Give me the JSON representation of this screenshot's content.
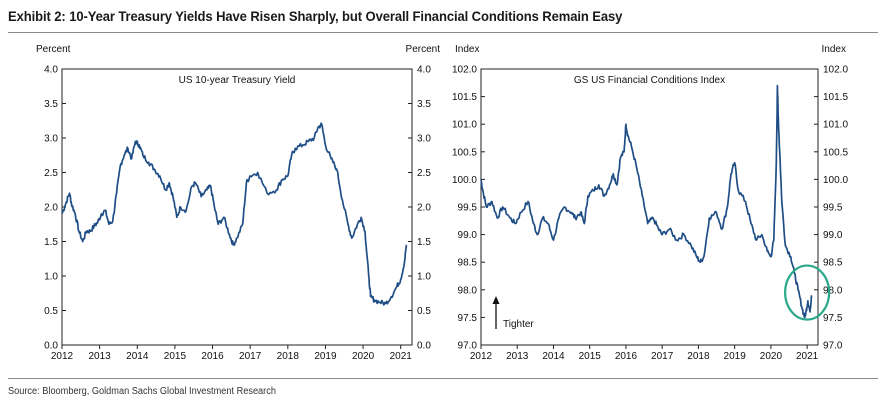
{
  "exhibit_title": "Exhibit 2: 10-Year Treasury Yields Have Risen Sharply, but Overall Financial Conditions Remain Easy",
  "source": "Source: Bloomberg, Goldman Sachs Global Investment Research",
  "colors": {
    "line": "#1f4e86",
    "highlight_circle": "#2aa88a",
    "axis": "#222222"
  },
  "chart_data": [
    {
      "type": "line",
      "title": "US 10-year Treasury Yield",
      "ylabel_left": "Percent",
      "ylabel_right": "Percent",
      "x_ticks": [
        "2012",
        "2013",
        "2014",
        "2015",
        "2016",
        "2017",
        "2018",
        "2019",
        "2020",
        "2021"
      ],
      "y_ticks": [
        "0.0",
        "0.5",
        "1.0",
        "1.5",
        "2.0",
        "2.5",
        "3.0",
        "3.5",
        "4.0"
      ],
      "xlim": [
        2012.0,
        2021.3
      ],
      "ylim": [
        0.0,
        4.0
      ],
      "series": [
        {
          "name": "US 10-year Treasury Yield",
          "x": [
            2012.0,
            2012.1,
            2012.2,
            2012.25,
            2012.35,
            2012.45,
            2012.55,
            2012.65,
            2012.75,
            2012.85,
            2012.95,
            2013.05,
            2013.15,
            2013.25,
            2013.35,
            2013.45,
            2013.55,
            2013.65,
            2013.75,
            2013.85,
            2013.95,
            2014.05,
            2014.15,
            2014.3,
            2014.45,
            2014.6,
            2014.75,
            2014.85,
            2014.95,
            2015.05,
            2015.15,
            2015.3,
            2015.45,
            2015.55,
            2015.7,
            2015.85,
            2015.95,
            2016.05,
            2016.15,
            2016.3,
            2016.45,
            2016.55,
            2016.65,
            2016.8,
            2016.9,
            2017.0,
            2017.2,
            2017.45,
            2017.7,
            2017.85,
            2018.0,
            2018.1,
            2018.2,
            2018.4,
            2018.55,
            2018.7,
            2018.8,
            2018.9,
            2019.0,
            2019.15,
            2019.3,
            2019.45,
            2019.6,
            2019.7,
            2019.85,
            2019.95,
            2020.05,
            2020.15,
            2020.2,
            2020.3,
            2020.45,
            2020.6,
            2020.75,
            2020.9,
            2021.0,
            2021.1,
            2021.15
          ],
          "y": [
            1.9,
            2.05,
            2.2,
            2.05,
            1.9,
            1.65,
            1.5,
            1.65,
            1.65,
            1.72,
            1.78,
            1.9,
            1.95,
            1.75,
            1.8,
            2.2,
            2.6,
            2.75,
            2.85,
            2.7,
            2.95,
            2.9,
            2.75,
            2.65,
            2.55,
            2.45,
            2.25,
            2.35,
            2.15,
            1.85,
            2.0,
            1.95,
            2.3,
            2.35,
            2.15,
            2.25,
            2.3,
            2.0,
            1.75,
            1.85,
            1.6,
            1.45,
            1.55,
            1.75,
            2.35,
            2.45,
            2.5,
            2.2,
            2.25,
            2.4,
            2.45,
            2.75,
            2.85,
            2.9,
            2.95,
            3.0,
            3.15,
            3.2,
            2.9,
            2.7,
            2.55,
            2.1,
            1.75,
            1.55,
            1.75,
            1.85,
            1.65,
            1.0,
            0.7,
            0.65,
            0.62,
            0.6,
            0.7,
            0.85,
            0.95,
            1.2,
            1.45
          ]
        }
      ]
    },
    {
      "type": "line",
      "title": "GS US Financial Conditions Index",
      "ylabel_left": "Index",
      "ylabel_right": "Index",
      "x_ticks": [
        "2012",
        "2013",
        "2014",
        "2015",
        "2016",
        "2017",
        "2018",
        "2019",
        "2020",
        "2021"
      ],
      "y_ticks": [
        "97.0",
        "97.5",
        "98.0",
        "98.5",
        "99.0",
        "99.5",
        "100.0",
        "100.5",
        "101.0",
        "101.5",
        "102.0"
      ],
      "xlim": [
        2012.0,
        2021.3
      ],
      "ylim": [
        97.0,
        102.0
      ],
      "annotation": {
        "text": "Tighter",
        "arrow": "up"
      },
      "highlight": {
        "shape": "circle",
        "x_center": 2021.0,
        "y_center": 97.95
      },
      "series": [
        {
          "name": "GS US Financial Conditions Index",
          "x": [
            2012.0,
            2012.05,
            2012.15,
            2012.3,
            2012.45,
            2012.6,
            2012.8,
            2012.95,
            2013.1,
            2013.3,
            2013.45,
            2013.55,
            2013.7,
            2013.85,
            2014.0,
            2014.15,
            2014.3,
            2014.5,
            2014.6,
            2014.75,
            2014.85,
            2014.95,
            2015.1,
            2015.25,
            2015.4,
            2015.55,
            2015.65,
            2015.75,
            2015.85,
            2015.95,
            2016.0,
            2016.05,
            2016.15,
            2016.3,
            2016.45,
            2016.6,
            2016.75,
            2016.9,
            2017.0,
            2017.2,
            2017.4,
            2017.6,
            2017.8,
            2017.95,
            2018.05,
            2018.15,
            2018.3,
            2018.5,
            2018.65,
            2018.8,
            2018.9,
            2019.0,
            2019.1,
            2019.3,
            2019.45,
            2019.6,
            2019.75,
            2019.9,
            2020.0,
            2020.08,
            2020.15,
            2020.18,
            2020.2,
            2020.25,
            2020.3,
            2020.4,
            2020.55,
            2020.65,
            2020.75,
            2020.85,
            2020.93,
            2020.97,
            2021.02,
            2021.08,
            2021.12
          ],
          "y": [
            100.0,
            99.8,
            99.5,
            99.6,
            99.3,
            99.5,
            99.3,
            99.2,
            99.4,
            99.6,
            99.2,
            99.0,
            99.3,
            99.2,
            98.9,
            99.3,
            99.5,
            99.4,
            99.3,
            99.4,
            99.2,
            99.7,
            99.8,
            99.9,
            99.7,
            99.9,
            100.1,
            99.9,
            100.4,
            100.5,
            101.0,
            100.8,
            100.6,
            100.2,
            99.7,
            99.2,
            99.3,
            99.1,
            99.0,
            99.1,
            98.9,
            99.0,
            98.8,
            98.6,
            98.5,
            98.6,
            99.3,
            99.4,
            99.1,
            99.5,
            100.1,
            100.3,
            99.8,
            99.6,
            99.2,
            98.9,
            99.0,
            98.7,
            98.6,
            98.9,
            100.3,
            101.7,
            101.2,
            100.4,
            99.6,
            98.8,
            98.6,
            98.3,
            98.0,
            97.7,
            97.5,
            97.6,
            97.8,
            97.6,
            97.9
          ]
        }
      ]
    }
  ]
}
